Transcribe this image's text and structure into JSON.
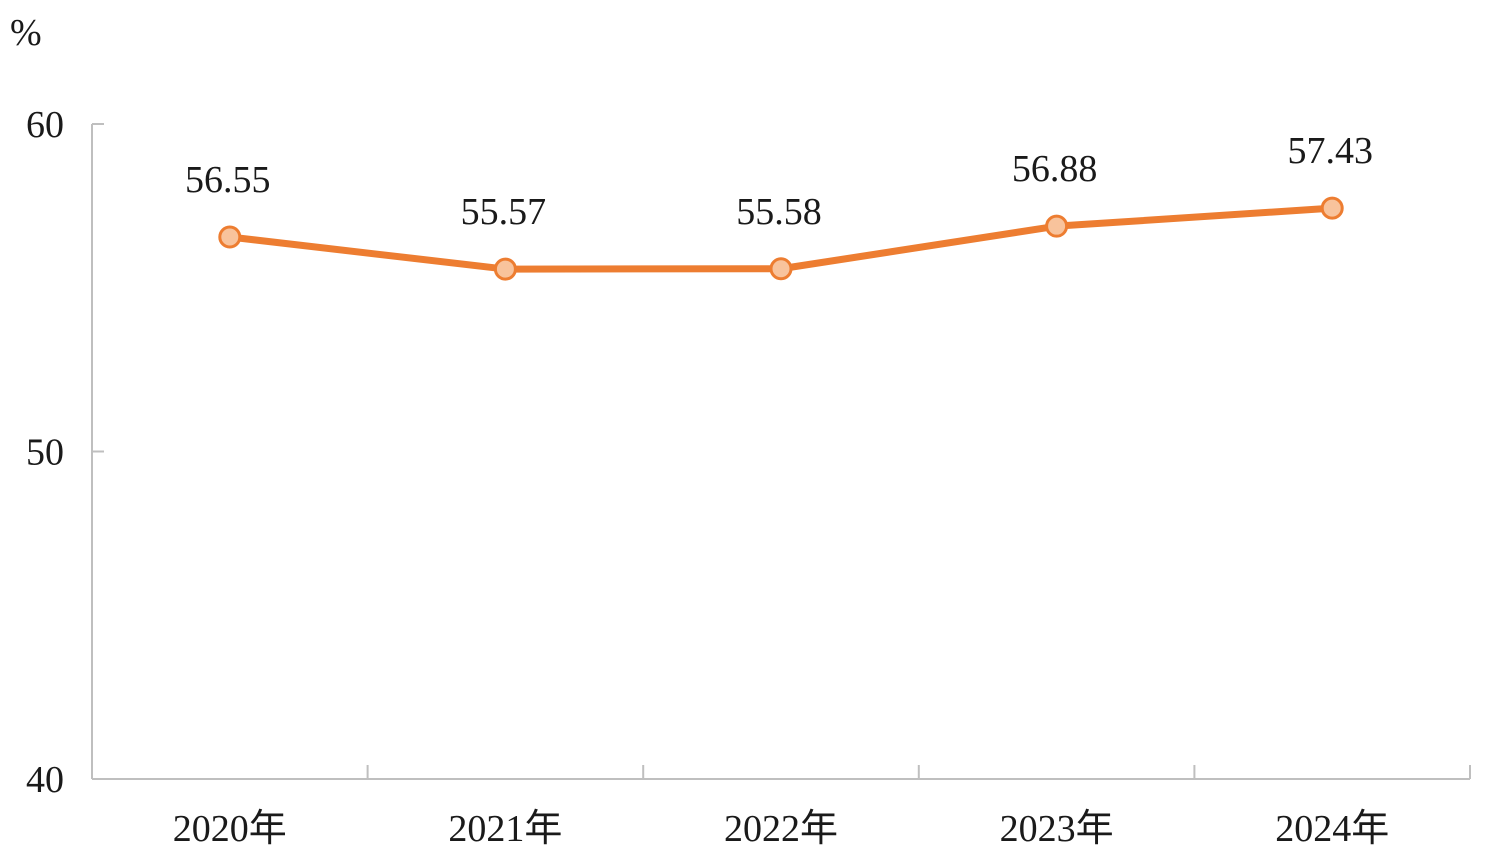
{
  "chart_data": {
    "type": "line",
    "unit": "%",
    "categories": [
      "2020年",
      "2021年",
      "2022年",
      "2023年",
      "2024年"
    ],
    "series": [
      {
        "values": [
          56.55,
          55.57,
          55.58,
          56.88,
          57.43
        ]
      }
    ],
    "data_labels": [
      "56.55",
      "55.57",
      "55.58",
      "56.88",
      "57.43"
    ],
    "yticks": [
      "40",
      "50",
      "60"
    ],
    "ylim": [
      40,
      60
    ],
    "grid": false,
    "legend": "none",
    "colors": {
      "line": "#ed7d31",
      "marker_fill": "#f8c39c",
      "marker_stroke": "#ed7d31",
      "axis": "#bfbfbf",
      "text": "#1a1a1a"
    }
  }
}
